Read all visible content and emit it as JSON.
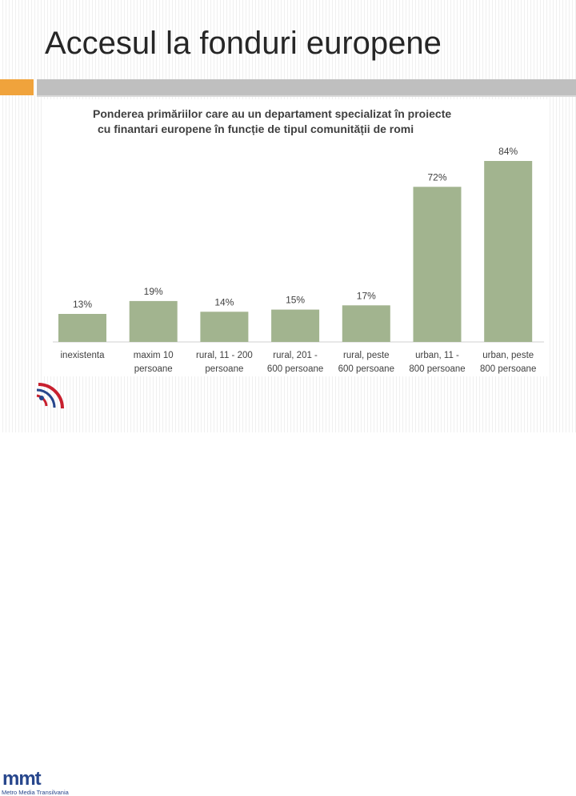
{
  "slide": {
    "title": "Accesul la fonduri europene"
  },
  "logo": {
    "name": "mmt",
    "subtitle": "Metro Media Transilvania"
  },
  "colors": {
    "bar": "#a2b48f",
    "accent_orange": "#f0a33c",
    "accent_gray": "#bfbfbf",
    "logo_blue": "#27468c",
    "logo_red": "#c8202e"
  },
  "chart_data": {
    "type": "bar",
    "title": [
      "Ponderea primăriilor care au un departament specializat în proiecte",
      "cu finantari europene în funcție de tipul comunității de romi"
    ],
    "categories": [
      [
        "inexistenta"
      ],
      [
        "maxim 10",
        "persoane"
      ],
      [
        "rural, 11 - 200",
        "persoane"
      ],
      [
        "rural, 201 -",
        "600 persoane"
      ],
      [
        "rural, peste",
        "600 persoane"
      ],
      [
        "urban, 11 -",
        "800 persoane"
      ],
      [
        "urban, peste",
        "800 persoane"
      ]
    ],
    "values": [
      13,
      19,
      14,
      15,
      17,
      72,
      84
    ],
    "value_labels": [
      "13%",
      "19%",
      "14%",
      "15%",
      "17%",
      "72%",
      "84%"
    ],
    "ylim": [
      0,
      84
    ],
    "grid": false,
    "legend": "none"
  }
}
